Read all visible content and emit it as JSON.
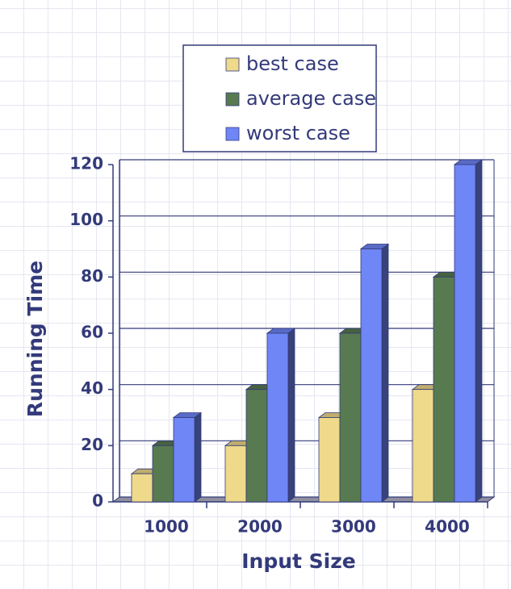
{
  "chart_data": {
    "type": "bar",
    "x_label": "Input Size",
    "y_label": "Running Time",
    "categories": [
      "1000",
      "2000",
      "3000",
      "4000"
    ],
    "series": [
      {
        "name": "best case",
        "color": "#efd98a",
        "values": [
          10,
          20,
          30,
          40
        ]
      },
      {
        "name": "average case",
        "color": "#587a50",
        "values": [
          20,
          40,
          60,
          80
        ]
      },
      {
        "name": "worst case",
        "color": "#6f86f6",
        "values": [
          30,
          60,
          90,
          120
        ]
      }
    ],
    "ylim": [
      0,
      120
    ],
    "yticks": [
      0,
      20,
      40,
      60,
      80,
      100,
      120
    ],
    "grid": true
  }
}
